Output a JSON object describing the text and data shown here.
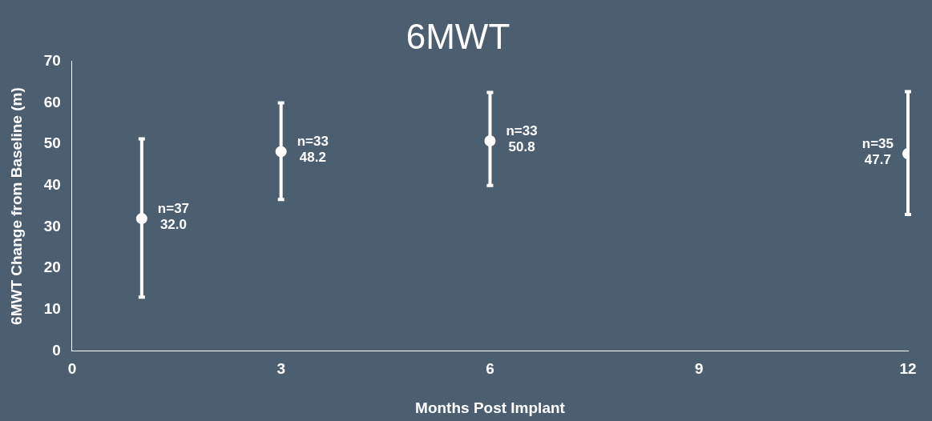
{
  "chart_data": {
    "type": "scatter",
    "title": "6MWT",
    "xlabel": "Months Post Implant",
    "ylabel": "6MWT Change from Baseline (m)",
    "x": [
      1,
      3,
      6,
      12
    ],
    "series": [
      {
        "color": "#ffffff",
        "values": [
          32.0,
          48.2,
          50.8,
          47.7
        ],
        "errors": [
          [
            13,
            51.3
          ],
          [
            36.6,
            60
          ],
          [
            40,
            62.5
          ],
          [
            33,
            62.7
          ]
        ],
        "value_labels": [
          "n=37\n32.0",
          "n=33\n48.2",
          "n=33\n50.8",
          "n=35\n47.7"
        ]
      }
    ],
    "xlim": [
      0,
      12
    ],
    "xticks": [
      0,
      3,
      6,
      9,
      12
    ],
    "ylim": [
      0,
      70
    ],
    "yticks": [
      0,
      10,
      20,
      30,
      40,
      50,
      60,
      70
    ],
    "grid": false,
    "legend": false,
    "marker": "circle"
  }
}
